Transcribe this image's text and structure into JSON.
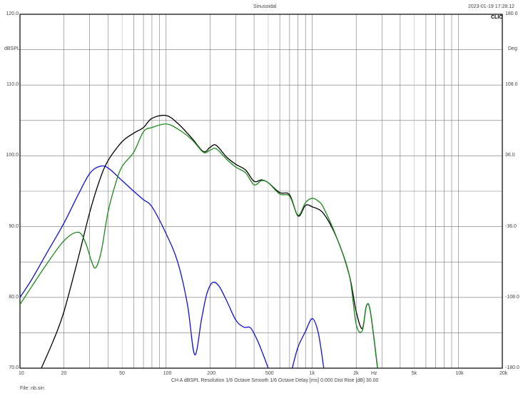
{
  "chart_data": {
    "type": "line",
    "title": "Sinusoidal",
    "timestamp": "2023-01-19 17:28:12",
    "logo": "CLIO",
    "ylabel": "dBSPL",
    "y2label": "Deg",
    "xlabel": "Hz",
    "x_scale": "log",
    "xlim": [
      10,
      20000
    ],
    "ylim": [
      70,
      120
    ],
    "y2lim": [
      -180,
      180
    ],
    "grid": true,
    "x_ticks": [
      {
        "v": 10,
        "label": "10"
      },
      {
        "v": 20,
        "label": "20"
      },
      {
        "v": 50,
        "label": "50"
      },
      {
        "v": 100,
        "label": "100"
      },
      {
        "v": 200,
        "label": "200"
      },
      {
        "v": 500,
        "label": "500"
      },
      {
        "v": 1000,
        "label": "1k"
      },
      {
        "v": 2000,
        "label": "2k"
      },
      {
        "v": 5000,
        "label": "5k"
      },
      {
        "v": 10000,
        "label": "10k"
      },
      {
        "v": 20000,
        "label": "20k"
      }
    ],
    "y_ticks": [
      {
        "v": 120,
        "label": "120.0"
      },
      {
        "v": 110,
        "label": "110.0"
      },
      {
        "v": 100,
        "label": "100.0"
      },
      {
        "v": 90,
        "label": "90.0"
      },
      {
        "v": 80,
        "label": "80.0"
      },
      {
        "v": 70,
        "label": "70.0"
      }
    ],
    "y2_ticks": [
      "180.0",
      "108.0",
      "36.0",
      "-36.0",
      "-108.0",
      "-180.0"
    ],
    "series": [
      {
        "color": "#1010e0",
        "x": [
          10,
          12,
          15,
          20,
          25,
          30,
          35,
          40,
          50,
          60,
          70,
          80,
          100,
          120,
          140,
          157,
          175,
          190,
          208,
          230,
          260,
          300,
          340,
          378,
          420,
          460,
          500,
          null,
          730,
          800,
          900,
          1000,
          1100,
          1200
        ],
        "y": [
          80,
          82.5,
          86,
          90.5,
          94.5,
          97.5,
          98.5,
          98.3,
          96.5,
          95,
          93.8,
          92.8,
          89,
          85,
          79,
          71.9,
          77,
          80.5,
          82.1,
          81.6,
          79.5,
          76.8,
          75.8,
          75.7,
          74,
          72,
          70,
          null,
          70,
          73,
          75.2,
          77,
          75,
          70
        ]
      },
      {
        "color": "#000000",
        "x": [
          14,
          17,
          20,
          25,
          30,
          35,
          40,
          50,
          60,
          70,
          80,
          100,
          120,
          150,
          180,
          200,
          220,
          260,
          300,
          350,
          400,
          450,
          500,
          600,
          700,
          800,
          900,
          1000,
          1200,
          1500,
          1800,
          2000,
          2200,
          2350,
          2500,
          2800
        ],
        "y": [
          70,
          74,
          78,
          85.5,
          92,
          96.5,
          99.3,
          102,
          103.2,
          104,
          105.3,
          105.7,
          104.6,
          102.5,
          100.6,
          101.2,
          101.5,
          99.8,
          98.8,
          98,
          96.4,
          96.6,
          96.2,
          94.8,
          94.5,
          91.5,
          93,
          92.8,
          91.8,
          88,
          83,
          78,
          75.6,
          78.8,
          78,
          70
        ]
      },
      {
        "color": "#1a8a1a",
        "x": [
          10,
          12,
          15,
          20,
          25,
          28,
          31,
          33,
          36,
          40,
          45,
          50,
          60,
          70,
          80,
          100,
          120,
          150,
          180,
          200,
          220,
          260,
          300,
          350,
          400,
          450,
          500,
          600,
          700,
          800,
          900,
          1000,
          1100,
          1200,
          1500,
          1800,
          2000,
          2200,
          2350,
          2500,
          2800
        ],
        "y": [
          79,
          81.5,
          84.5,
          88,
          89.2,
          87.8,
          85,
          84.2,
          86.5,
          92,
          96,
          98.5,
          100.5,
          103.4,
          104,
          104.5,
          103.8,
          102.3,
          100.5,
          100.8,
          101,
          99.5,
          98.4,
          97.6,
          95.9,
          96.5,
          96.2,
          94.6,
          94.3,
          91.6,
          93.4,
          94,
          93.6,
          92.6,
          88,
          83,
          76.2,
          75.3,
          78.8,
          78,
          70
        ]
      }
    ]
  },
  "footer": {
    "settings": "CH A   dBSPL   Resolution 1/6 Octave   Smooth 1/6 Octave   Delay [ms] 0.000   Dist Rise [dB] 30.00",
    "file": "File: nb.sin"
  }
}
